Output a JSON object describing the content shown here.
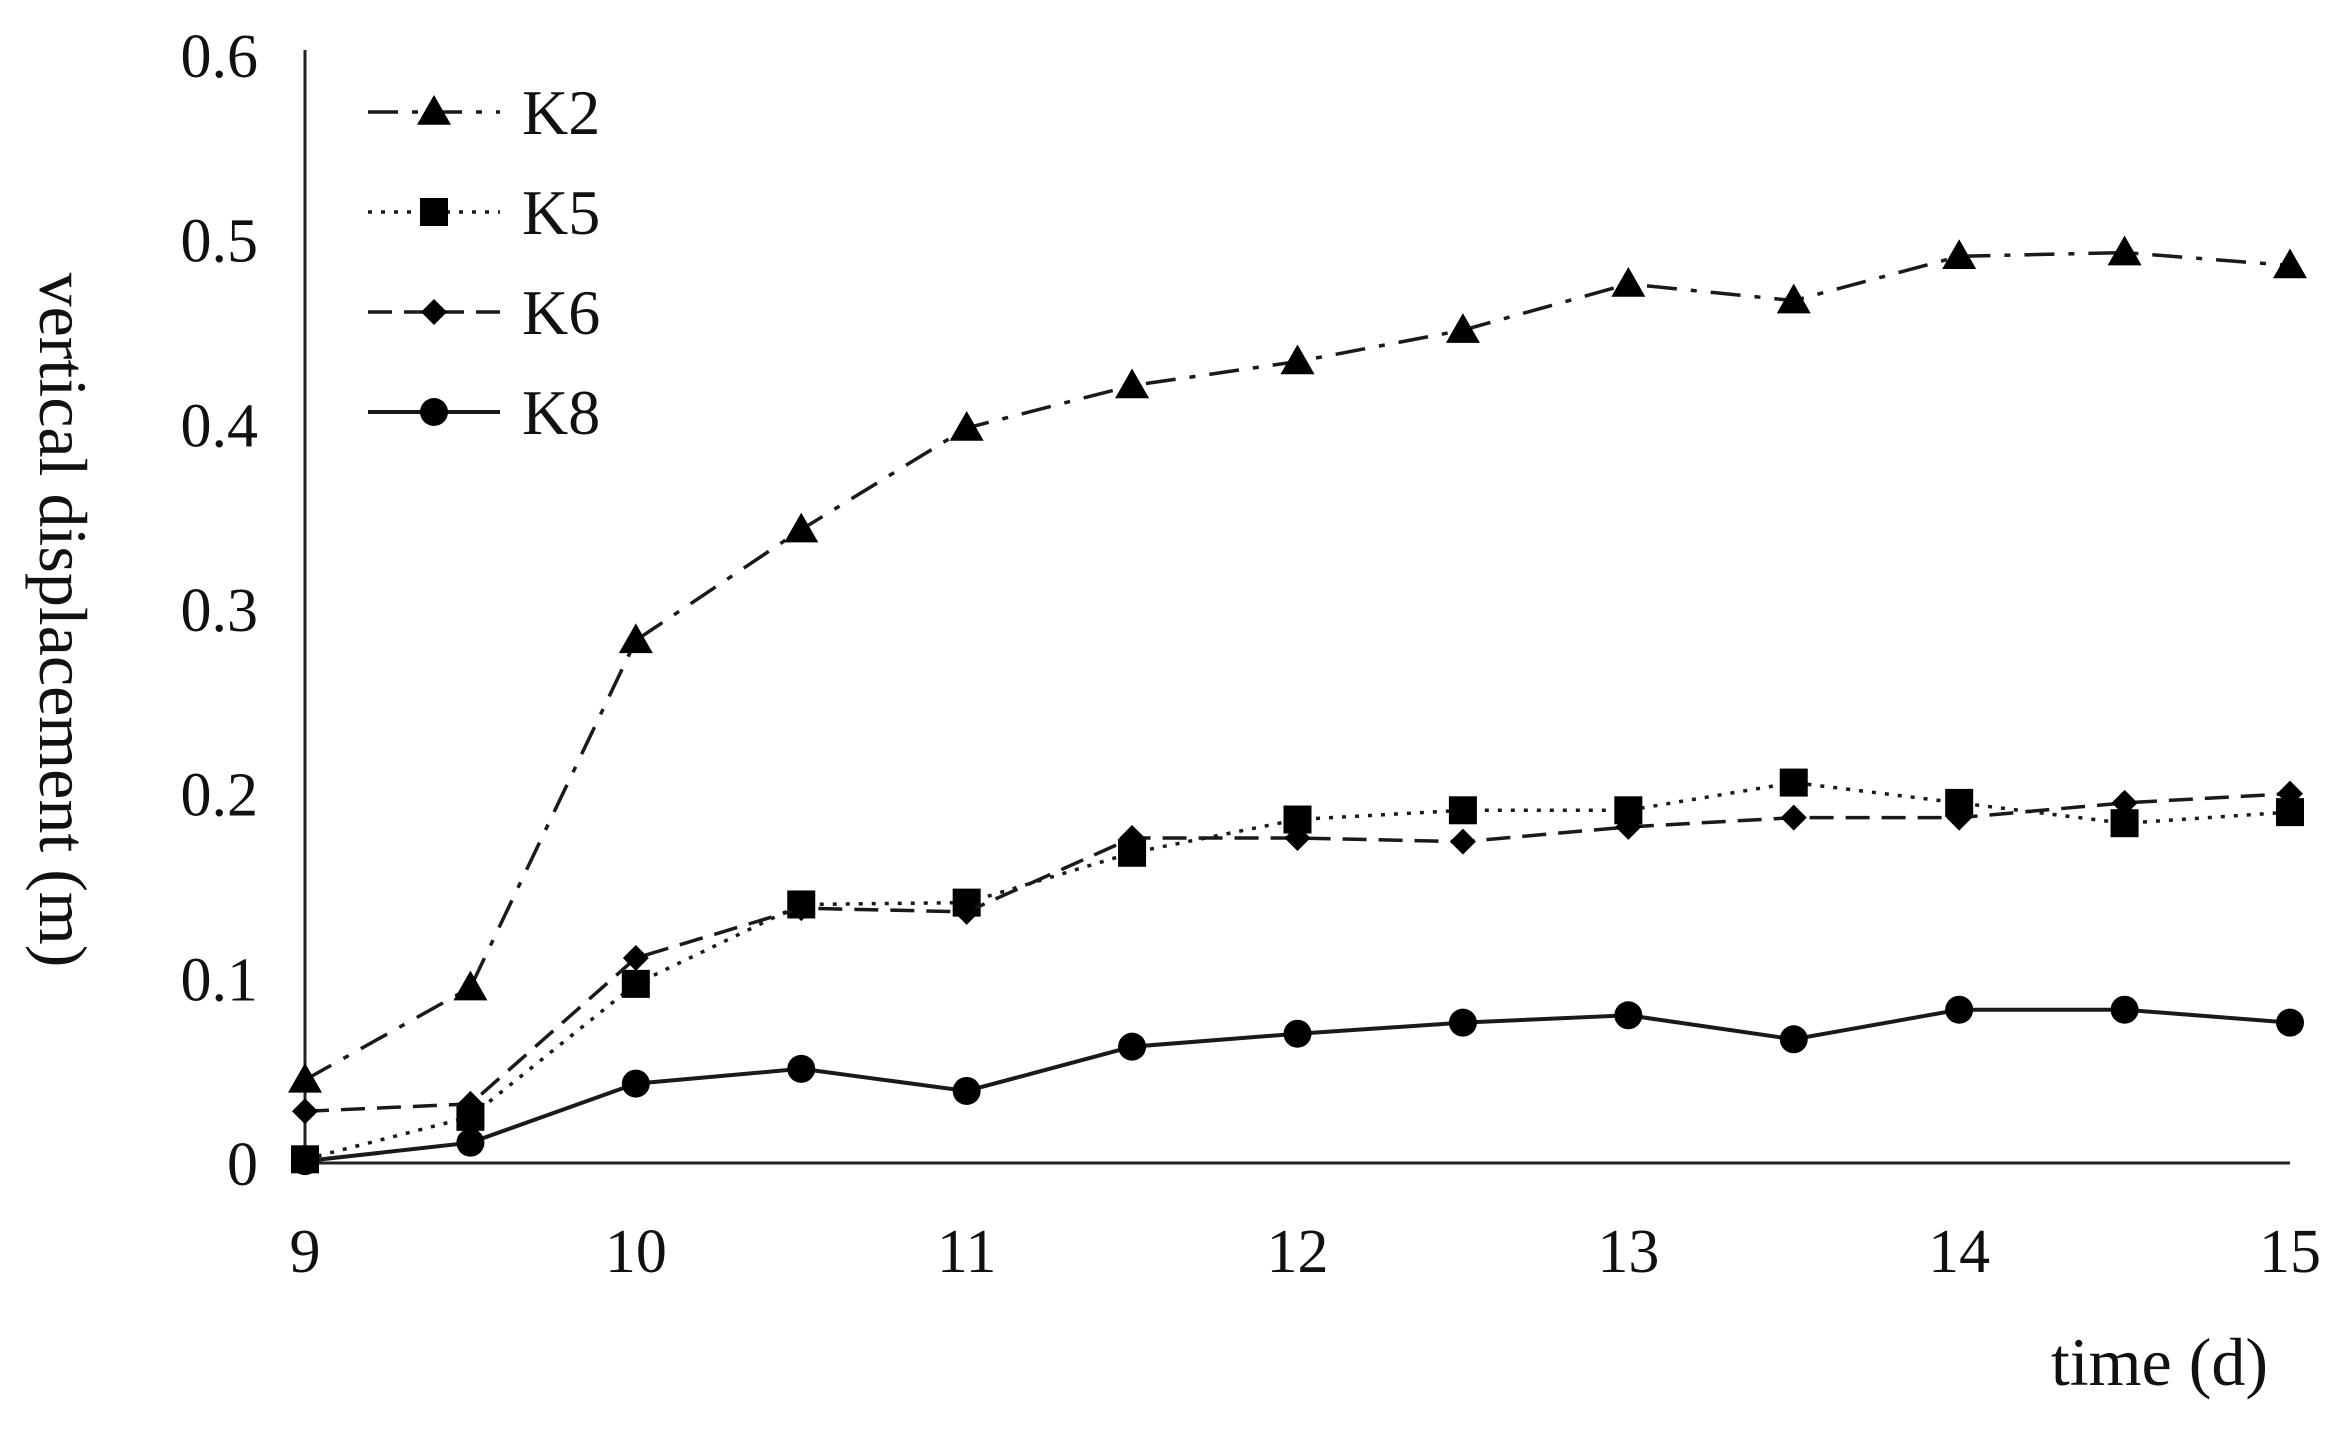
{
  "chart_data": {
    "type": "line",
    "xlabel": "time (d)",
    "ylabel": "vertical displacement (m)",
    "xlim": [
      9,
      15
    ],
    "ylim": [
      0,
      0.6
    ],
    "xticks": [
      9,
      10,
      11,
      12,
      13,
      14,
      15
    ],
    "yticks": [
      0,
      0.1,
      0.2,
      0.3,
      0.4,
      0.5,
      0.6
    ],
    "ytick_labels": [
      "0",
      "0.1",
      "0.2",
      "0.3",
      "0.4",
      "0.5",
      "0.6"
    ],
    "xtick_labels": [
      "9",
      "10",
      "11",
      "12",
      "13",
      "14",
      "15"
    ],
    "grid": false,
    "legend_position": "top-left",
    "x": [
      9,
      9.5,
      10,
      10.5,
      11,
      11.5,
      12,
      12.5,
      13,
      13.5,
      14,
      14.5,
      15
    ],
    "series": [
      {
        "name": "K2",
        "marker": "triangle",
        "dash": "dash-dot",
        "values": [
          0.045,
          0.095,
          0.283,
          0.343,
          0.398,
          0.421,
          0.434,
          0.451,
          0.476,
          0.467,
          0.491,
          0.493,
          0.486
        ]
      },
      {
        "name": "K5",
        "marker": "square",
        "dash": "dotted",
        "values": [
          0.002,
          0.025,
          0.097,
          0.14,
          0.141,
          0.168,
          0.186,
          0.191,
          0.191,
          0.206,
          0.195,
          0.184,
          0.19
        ]
      },
      {
        "name": "K6",
        "marker": "diamond",
        "dash": "dashed",
        "values": [
          0.028,
          0.032,
          0.111,
          0.138,
          0.136,
          0.176,
          0.176,
          0.174,
          0.182,
          0.187,
          0.187,
          0.195,
          0.2
        ]
      },
      {
        "name": "K8",
        "marker": "circle",
        "dash": "solid",
        "values": [
          0.001,
          0.011,
          0.043,
          0.051,
          0.039,
          0.063,
          0.07,
          0.076,
          0.08,
          0.067,
          0.083,
          0.083,
          0.076
        ]
      }
    ]
  }
}
